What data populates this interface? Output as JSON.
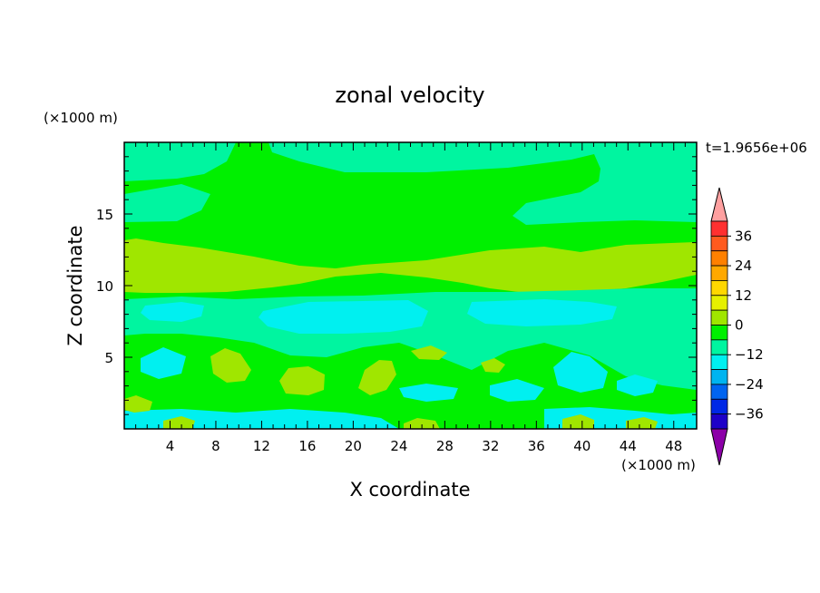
{
  "chart_data": {
    "type": "heatmap",
    "title": "zonal velocity",
    "xlabel": "X coordinate",
    "ylabel": "Z coordinate",
    "x_unit": "(×1000 m)",
    "y_unit": "(×1000 m)",
    "time_label": "t=1.9656e+06",
    "xlim": [
      0,
      50
    ],
    "ylim": [
      0,
      20
    ],
    "x_ticks": [
      4,
      8,
      12,
      16,
      20,
      24,
      28,
      32,
      36,
      40,
      44,
      48
    ],
    "y_ticks": [
      5,
      10,
      15
    ],
    "colorbar": {
      "labels": [
        36,
        24,
        12,
        0,
        -12,
        -24,
        -36
      ],
      "levels": [
        42,
        36,
        30,
        24,
        18,
        12,
        6,
        0,
        -6,
        -12,
        -18,
        -24,
        -30,
        -36,
        -42
      ],
      "colors": [
        "#FFA0A0",
        "#FF3030",
        "#FF5A1E",
        "#FF8000",
        "#FFA800",
        "#FFD700",
        "#E6F000",
        "#A0E600",
        "#00F000",
        "#00F5A0",
        "#00F0F0",
        "#00B4F0",
        "#0064F0",
        "#0028E6",
        "#1E00C8",
        "#3C14B4",
        "#50148C",
        "#8C00A8"
      ]
    },
    "fields": [
      {
        "level_color": "#00F000",
        "value_range": [
          0,
          6
        ]
      },
      {
        "level_color": "#00F5A0",
        "value_range": [
          -6,
          0
        ]
      },
      {
        "level_color": "#A0E600",
        "value_range": [
          6,
          12
        ]
      },
      {
        "level_color": "#00F0F0",
        "value_range": [
          -12,
          -6
        ]
      }
    ]
  }
}
